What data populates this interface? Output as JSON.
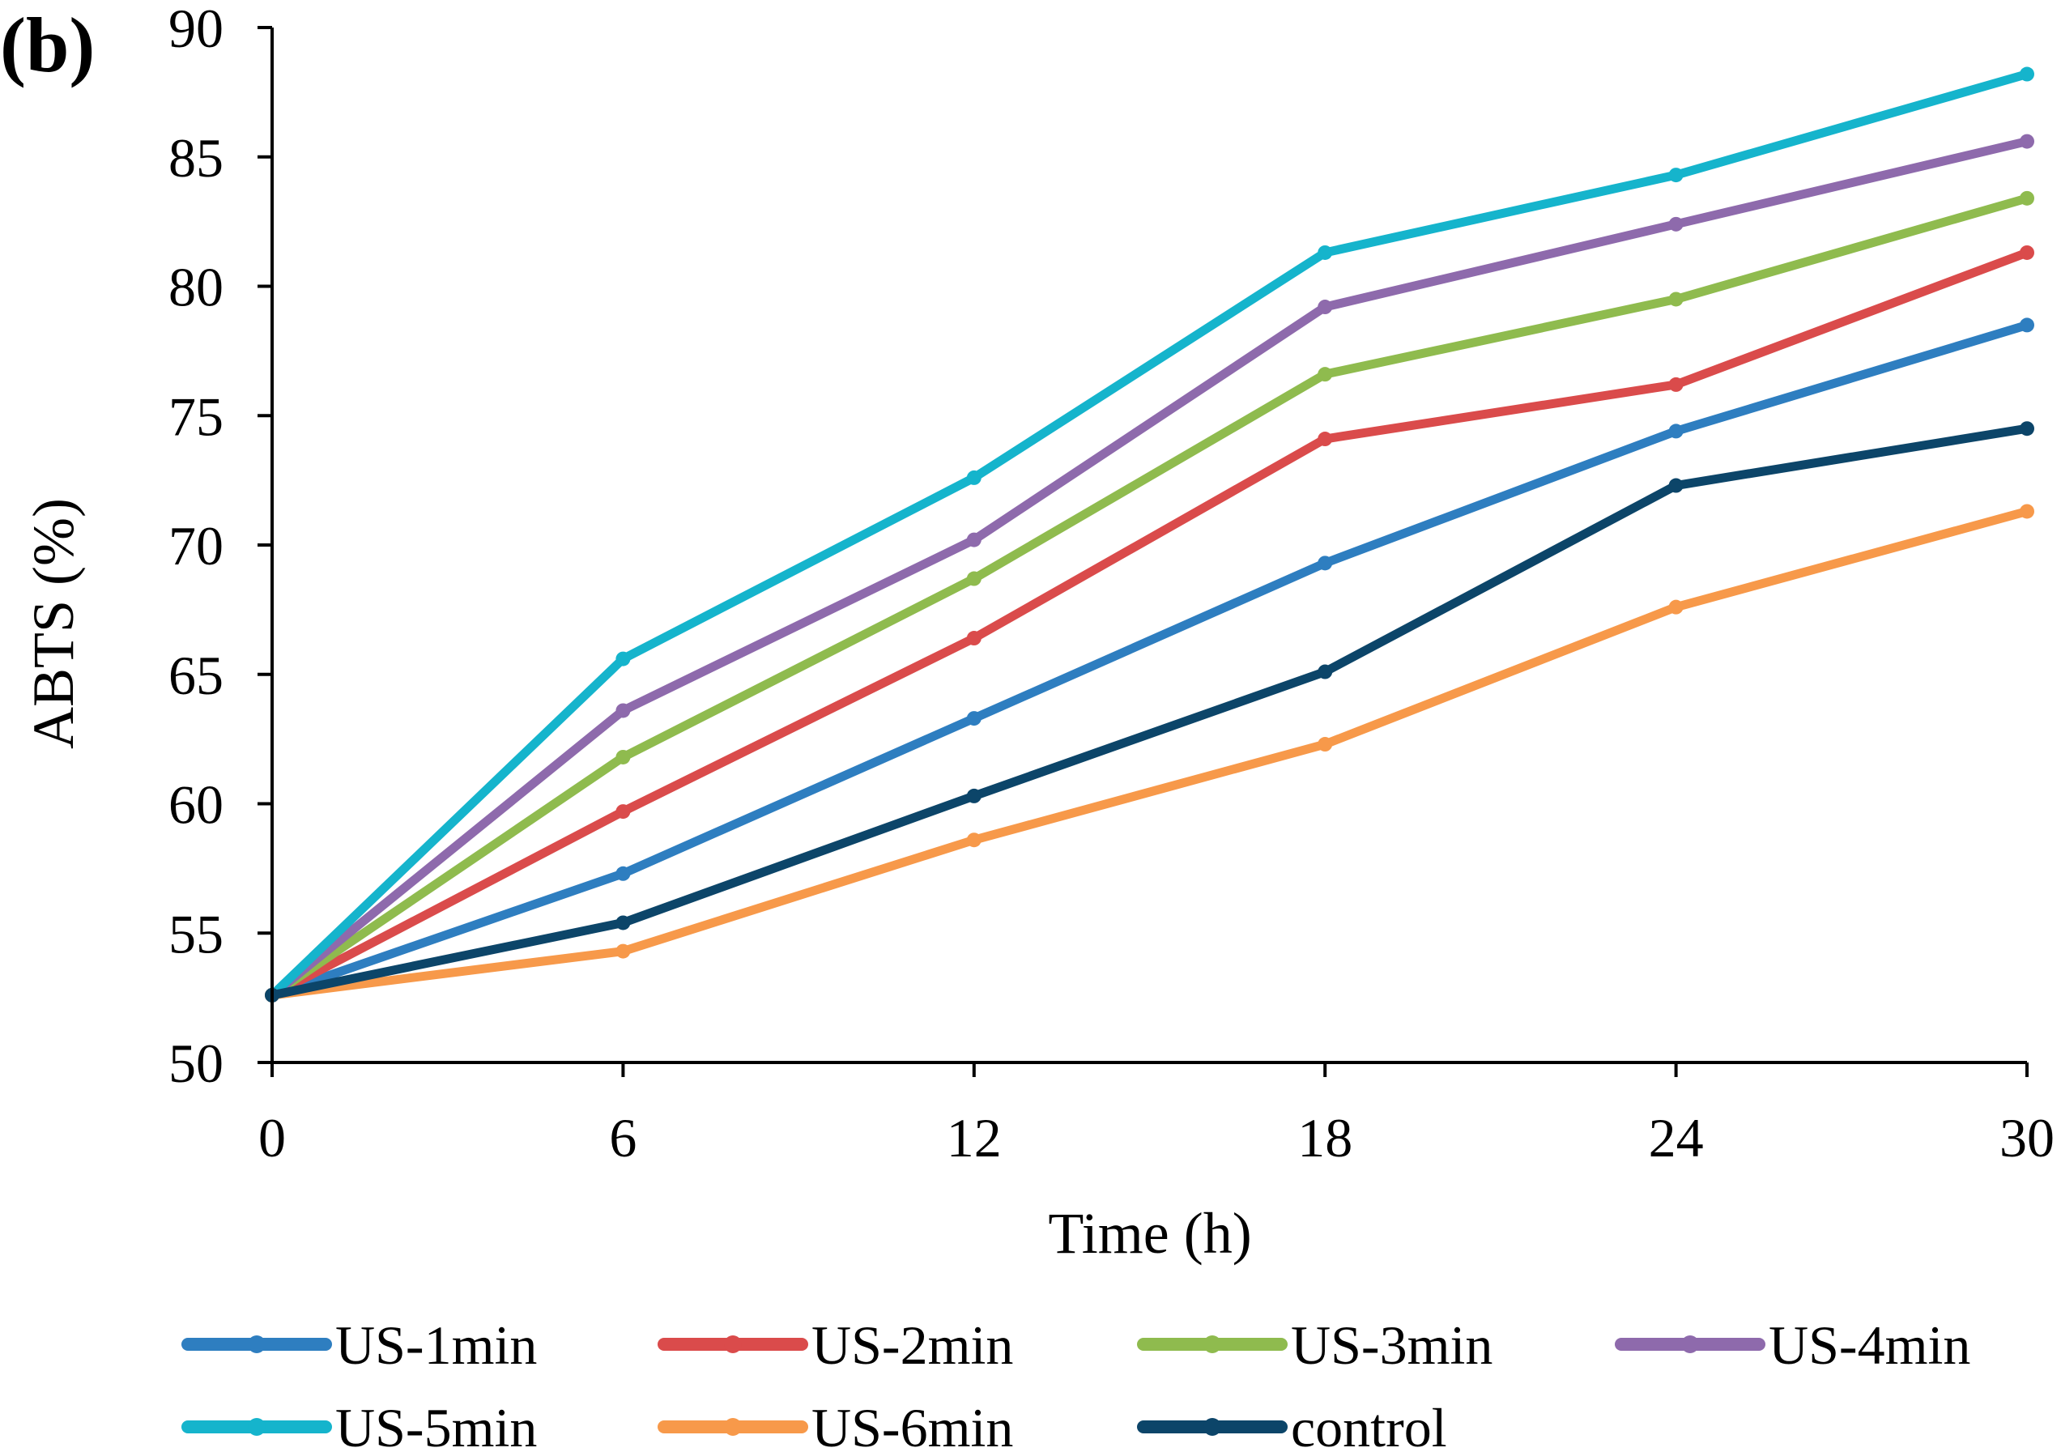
{
  "chart_data": {
    "type": "line",
    "panel_label": "(b)",
    "title": "",
    "xlabel": "Time (h)",
    "ylabel": "ABTS (%)",
    "x": [
      0,
      6,
      12,
      18,
      24,
      30
    ],
    "x_tick_labels": [
      "0",
      "6",
      "12",
      "18",
      "24",
      "30"
    ],
    "xlim": [
      0,
      30
    ],
    "ylim": [
      50,
      90
    ],
    "y_ticks": [
      50,
      55,
      60,
      65,
      70,
      75,
      80,
      85,
      90
    ],
    "y_tick_labels": [
      "50",
      "55",
      "60",
      "65",
      "70",
      "75",
      "80",
      "85",
      "90"
    ],
    "grid": false,
    "legend_position": "bottom",
    "series": [
      {
        "name": "US-1min",
        "color": "#2E7EC0",
        "values": [
          52.6,
          57.3,
          63.3,
          69.3,
          74.4,
          78.5
        ]
      },
      {
        "name": "US-2min",
        "color": "#DA4B4B",
        "values": [
          52.6,
          59.7,
          66.4,
          74.1,
          76.2,
          81.3
        ]
      },
      {
        "name": "US-3min",
        "color": "#8FBB4E",
        "values": [
          52.6,
          61.8,
          68.7,
          76.6,
          79.5,
          83.4
        ]
      },
      {
        "name": "US-4min",
        "color": "#8E6AAC",
        "values": [
          52.6,
          63.6,
          70.2,
          79.2,
          82.4,
          85.6
        ]
      },
      {
        "name": "US-5min",
        "color": "#15B4CC",
        "values": [
          52.6,
          65.6,
          72.6,
          81.3,
          84.3,
          88.2
        ]
      },
      {
        "name": "US-6min",
        "color": "#F7994A",
        "values": [
          52.6,
          54.3,
          58.6,
          62.3,
          67.6,
          71.3
        ]
      },
      {
        "name": "control",
        "color": "#0C4569",
        "values": [
          52.6,
          55.4,
          60.3,
          65.1,
          72.3,
          74.5
        ]
      }
    ]
  }
}
